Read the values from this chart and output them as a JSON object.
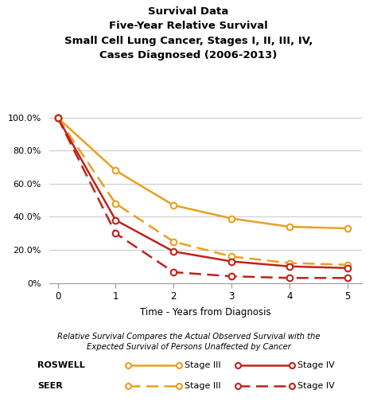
{
  "title_lines": [
    "Survival Data",
    "Five-Year Relative Survival",
    "Small Cell Lung Cancer, Stages I, II, III, IV,",
    "Cases Diagnosed (2006-2013)"
  ],
  "xlabel": "Time - Years from Diagnosis",
  "footnote_line1": "Relative Survival Compares the Actual Observed Survival with the",
  "footnote_line2": "Expected Survival of Persons Unaffected by Cancer",
  "x": [
    0,
    1,
    2,
    3,
    4,
    5
  ],
  "roswell_stage3": [
    1.0,
    0.68,
    0.47,
    0.39,
    0.34,
    0.33
  ],
  "roswell_stage4": [
    1.0,
    0.38,
    0.19,
    0.13,
    0.1,
    0.09
  ],
  "seer_stage3": [
    1.0,
    0.48,
    0.25,
    0.16,
    0.12,
    0.11
  ],
  "seer_stage4": [
    1.0,
    0.3,
    0.065,
    0.04,
    0.03,
    0.03
  ],
  "orange_color": "#E8A020",
  "red_color": "#C0221A",
  "ylim": [
    0,
    1.05
  ],
  "yticks": [
    0,
    0.2,
    0.4,
    0.6,
    0.8,
    1.0
  ],
  "ytick_labels": [
    "0%",
    "20.0%",
    "40.0%",
    "60.0%",
    "80.0%",
    "100.0%"
  ],
  "xticks": [
    0,
    1,
    2,
    3,
    4,
    5
  ],
  "background_color": "#ffffff",
  "linewidth": 1.8,
  "markersize": 5.5
}
